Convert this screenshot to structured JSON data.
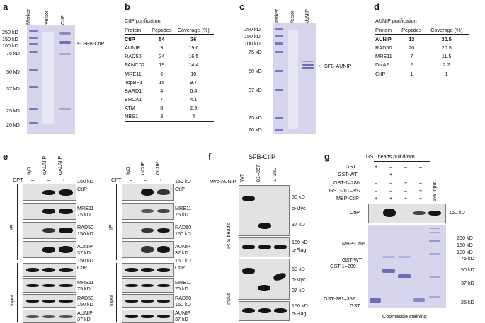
{
  "panels": {
    "a": {
      "letter": "a",
      "lanes": [
        "Marker",
        "Vector",
        "CtIP"
      ],
      "markers": [
        "250 kD",
        "150 kD",
        "100 kD",
        "75 kD",
        "50 kD",
        "37 kD",
        "25 kD",
        "20 kD"
      ],
      "arrow_label": "SFB-CtIP"
    },
    "b": {
      "letter": "b",
      "title": "CtIP purification",
      "headers": [
        "Protein",
        "Peptides",
        "Coverage (%)"
      ],
      "rows": [
        [
          "CtIP",
          "54",
          "36"
        ],
        [
          "AUNIP",
          "9",
          "19.6"
        ],
        [
          "RAD50",
          "24",
          "16.5"
        ],
        [
          "FANCD2",
          "19",
          "14.4"
        ],
        [
          "MRE11",
          "6",
          "10"
        ],
        [
          "TopBP1",
          "15",
          "9.7"
        ],
        [
          "BARD1",
          "4",
          "6.4"
        ],
        [
          "BRCA1",
          "7",
          "4.1"
        ],
        [
          "ATM",
          "8",
          "2.9"
        ],
        [
          "NBS1",
          "3",
          "4"
        ]
      ]
    },
    "c": {
      "letter": "c",
      "lanes": [
        "Marker",
        "Vector",
        "AUNIP"
      ],
      "markers": [
        "250 kD",
        "150 kD",
        "100 kD",
        "75 kD",
        "50 kD",
        "37 kD",
        "25 kD",
        "20 kD"
      ],
      "arrow_label": "SFB-AUNIP"
    },
    "d": {
      "letter": "d",
      "title": "AUNIP purification",
      "headers": [
        "Protein",
        "Peptides",
        "Coverage (%)"
      ],
      "rows": [
        [
          "AUNIP",
          "13",
          "30.5"
        ],
        [
          "RAD50",
          "20",
          "20.5"
        ],
        [
          "MRE11",
          "7",
          "11.5"
        ],
        [
          "DNA2",
          "2",
          "2.2"
        ],
        [
          "CtIP",
          "1",
          "1"
        ]
      ]
    },
    "e": {
      "letter": "e",
      "left_lanes": [
        "IgG",
        "αAUNIP",
        "αAUNIP"
      ],
      "right_lanes": [
        "IgG",
        "αCtIP",
        "αCtIP"
      ],
      "cpt_label": "CPT",
      "cpt_marks": [
        "–",
        "–",
        "+"
      ],
      "section_ip": "IP",
      "section_input": "Input",
      "blots": [
        {
          "protein": "CtIP",
          "kd": "150 kD"
        },
        {
          "protein": "MRE11",
          "kd": "75 kD"
        },
        {
          "protein": "RAD50",
          "kd": "150 kD"
        },
        {
          "protein": "AUNIP",
          "kd": "37 kD"
        },
        {
          "protein": "CtIP",
          "kd": "150 kD"
        },
        {
          "protein": "MRE11",
          "kd": "75 kD"
        },
        {
          "protein": "RAD50",
          "kd": "150 kD"
        },
        {
          "protein": "AUNIP",
          "kd": "37 kD"
        }
      ]
    },
    "f": {
      "letter": "f",
      "title": "SFB-CtIP",
      "myc_label": "Myc-AUNIP",
      "lanes": [
        "WT",
        "81–357",
        "1–280"
      ],
      "ip_label": "IP: S beads",
      "input_label": "Input",
      "ip_myc": {
        "kd_top": "50 kD",
        "kd_bottom": "37 kD",
        "antibody": "α-Myc"
      },
      "ip_flag": {
        "kd": "150 kD",
        "antibody": "α-Flag"
      },
      "in_myc": {
        "kd_top": "50 kD",
        "kd_bottom": "37 kD",
        "antibody": "α-Myc"
      },
      "in_flag": {
        "kd": "150 kD",
        "antibody": "α-Flag"
      }
    },
    "g": {
      "letter": "g",
      "title": "GST beads pull down",
      "row_labels": [
        "GST",
        "GST-WT",
        "GST-1–280",
        "GST-281–357",
        "MBP-CtIP"
      ],
      "signs": [
        [
          "+",
          "–",
          "–",
          "–"
        ],
        [
          "–",
          "+",
          "–",
          "–"
        ],
        [
          "–",
          "–",
          "+",
          "–"
        ],
        [
          "–",
          "–",
          "–",
          "+"
        ],
        [
          "+",
          "+",
          "+",
          "+"
        ]
      ],
      "input_label": "5% Input",
      "blot_protein": "CtIP",
      "blot_kd": "150 kD",
      "gel_labels": [
        "MBP-CtIP",
        "GST-WT",
        "GST-1–280",
        "GST-281–357",
        "GST"
      ],
      "gel_markers": [
        "250 kD",
        "150 kD",
        "100 kD",
        "75 kD",
        "50 kD",
        "37 kD",
        "25 kD"
      ],
      "caption": "Coomassie staining"
    }
  },
  "colors": {
    "gel_bg": "#d7d5ec",
    "gel_band": "#6f6bb8",
    "blot_bg": "#e2e2e2",
    "blot_band": "#141414"
  }
}
